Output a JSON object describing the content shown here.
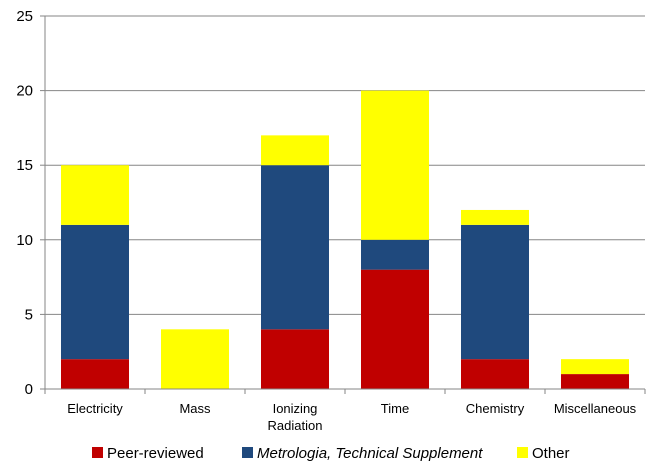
{
  "chart_data": {
    "type": "bar",
    "stacked": true,
    "categories": [
      [
        "Electricity"
      ],
      [
        "Mass"
      ],
      [
        "Ionizing",
        "Radiation"
      ],
      [
        "Time"
      ],
      [
        "Chemistry"
      ],
      [
        "Miscellaneous"
      ]
    ],
    "series": [
      {
        "name": "Peer-reviewed",
        "color": "#c00000",
        "italic": false,
        "values": [
          2,
          0,
          4,
          8,
          2,
          1
        ]
      },
      {
        "name": "Metrologia, Technical Supplement",
        "color": "#1f497d",
        "italic": true,
        "values": [
          9,
          0,
          11,
          2,
          9,
          0
        ]
      },
      {
        "name": "Other",
        "color": "#ffff00",
        "italic": false,
        "values": [
          4,
          4,
          2,
          10,
          1,
          1
        ]
      }
    ],
    "ylim": [
      0,
      25
    ],
    "yticks": [
      0,
      5,
      10,
      15,
      20,
      25
    ],
    "grid": true,
    "legend_position": "bottom"
  }
}
